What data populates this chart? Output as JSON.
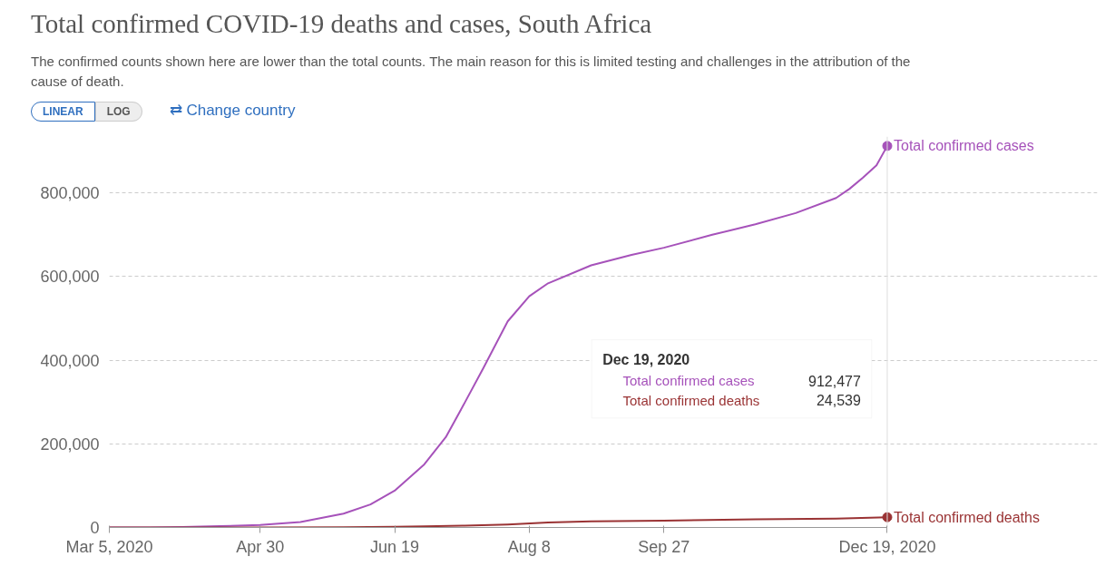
{
  "chart_data": {
    "type": "line",
    "title": "Total confirmed COVID-19 deaths and cases, South Africa",
    "subtitle": "The confirmed counts shown here are lower than the total counts. The main reason for this is limited testing and challenges in the attribution of the cause of death.",
    "annotations": [
      "LINEAR",
      "LOG",
      "⇄ Change country",
      "Dec 19, 2020",
      "Total confirmed cases",
      "912,477",
      "Total confirmed deaths",
      "24,539"
    ],
    "series": [
      {
        "name": "Total confirmed cases",
        "color": "#a652ba",
        "x": [
          "2020-03-05",
          "2020-03-20",
          "2020-04-01",
          "2020-04-15",
          "2020-04-30",
          "2020-05-15",
          "2020-05-31",
          "2020-06-10",
          "2020-06-19",
          "2020-06-30",
          "2020-07-08",
          "2020-07-15",
          "2020-07-22",
          "2020-07-31",
          "2020-08-08",
          "2020-08-15",
          "2020-08-31",
          "2020-09-15",
          "2020-09-27",
          "2020-10-15",
          "2020-10-31",
          "2020-11-15",
          "2020-11-30",
          "2020-12-05",
          "2020-12-10",
          "2020-12-15",
          "2020-12-19"
        ],
        "values": [
          0,
          0,
          1000,
          3000,
          6000,
          13000,
          33000,
          55000,
          88000,
          151000,
          216000,
          298000,
          382000,
          493000,
          553000,
          584000,
          627000,
          652000,
          669000,
          700000,
          725000,
          752000,
          788000,
          810000,
          837000,
          866000,
          912477
        ]
      },
      {
        "name": "Total confirmed deaths",
        "color": "#9a3334",
        "x": [
          "2020-03-05",
          "2020-04-30",
          "2020-05-31",
          "2020-06-19",
          "2020-06-30",
          "2020-07-15",
          "2020-07-31",
          "2020-08-15",
          "2020-08-31",
          "2020-09-27",
          "2020-10-31",
          "2020-11-30",
          "2020-12-19"
        ],
        "values": [
          0,
          100,
          700,
          1800,
          2700,
          4300,
          7300,
          11700,
          14400,
          16300,
          19600,
          21400,
          24539
        ]
      }
    ],
    "xlim": [
      "2020-03-05",
      "2020-12-19"
    ],
    "xticks": [
      {
        "value": "2020-03-05",
        "label": "Mar 5, 2020"
      },
      {
        "value": "2020-04-30",
        "label": "Apr 30"
      },
      {
        "value": "2020-06-19",
        "label": "Jun 19"
      },
      {
        "value": "2020-08-08",
        "label": "Aug 8"
      },
      {
        "value": "2020-09-27",
        "label": "Sep 27"
      },
      {
        "value": "2020-12-19",
        "label": "Dec 19, 2020"
      }
    ],
    "ylim": [
      0,
      935000
    ],
    "yticks": [
      0,
      {
        "value": 200000,
        "label": "200,000"
      },
      {
        "value": 400000,
        "label": "400,000"
      },
      {
        "value": 600000,
        "label": "600,000"
      },
      {
        "value": 800000,
        "label": "800,000"
      }
    ],
    "ref_lines": [
      {
        "axis": "x",
        "value": "2020-12-19",
        "color": "#dddddd"
      }
    ],
    "grid": "y",
    "line_style": "solid"
  }
}
